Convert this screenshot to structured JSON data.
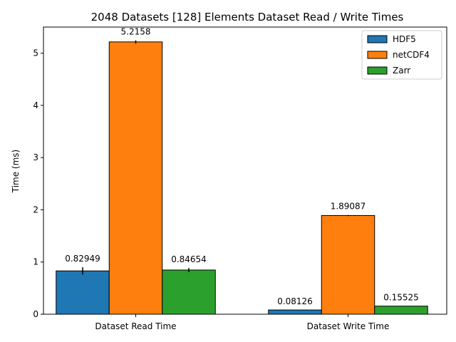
{
  "chart_data": {
    "type": "bar",
    "title": "2048 Datasets [128] Elements Dataset Read / Write Times",
    "xlabel": "",
    "ylabel": "Time (ms)",
    "categories": [
      "Dataset Read Time",
      "Dataset Write Time"
    ],
    "ylim": [
      0,
      5.5
    ],
    "yticks": [
      0,
      1,
      2,
      3,
      4,
      5
    ],
    "series": [
      {
        "name": "HDF5",
        "color": "#1f77b4",
        "values": [
          0.82949,
          0.08126
        ],
        "labels": [
          "0.82949",
          "0.08126"
        ],
        "errors": [
          0.07,
          0.0
        ]
      },
      {
        "name": "netCDF4",
        "color": "#ff7f0e",
        "values": [
          5.2158,
          1.89087
        ],
        "labels": [
          "5.2158",
          "1.89087"
        ],
        "errors": [
          0.03,
          0.01
        ]
      },
      {
        "name": "Zarr",
        "color": "#2ca02c",
        "values": [
          0.84654,
          0.15525
        ],
        "labels": [
          "0.84654",
          "0.15525"
        ],
        "errors": [
          0.04,
          0.0
        ]
      }
    ],
    "legend_position": "top-right",
    "grid": false
  }
}
